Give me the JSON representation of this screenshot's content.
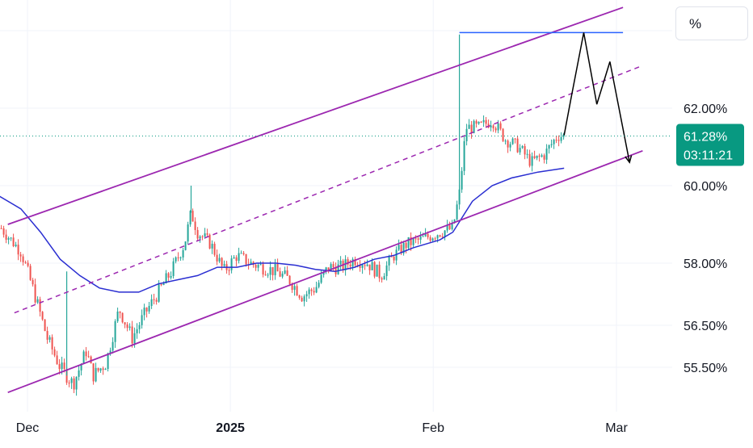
{
  "chart_data": {
    "type": "candlestick",
    "unit_button": "%",
    "y_ticks": [
      "62.00%",
      "60.00%",
      "58.00%",
      "56.50%",
      "55.50%"
    ],
    "x_ticks": [
      "Dec",
      "2025",
      "Feb",
      "Mar"
    ],
    "last_price": {
      "label": "61.28%",
      "countdown": "03:11:21",
      "value": 61.28
    },
    "colors": {
      "up": "#26a69a",
      "down": "#ef5350",
      "moving_average": "#2a2ed1",
      "channel": "#9c27b0",
      "horizontal_line": "#2962ff",
      "projection": "#000000",
      "price_line": "#089981",
      "grid": "#f0f3fa"
    },
    "grid": true,
    "series": [
      {
        "type": "candlestick",
        "close_path": [
          [
            "2024-11-27",
            58.9
          ],
          [
            "2024-11-30",
            58.3
          ],
          [
            "2024-12-02",
            57.3
          ],
          [
            "2024-12-04",
            56.2
          ],
          [
            "2024-12-06",
            55.5
          ],
          [
            "2024-12-08",
            55.1
          ],
          [
            "2024-12-10",
            55.9
          ],
          [
            "2024-12-11",
            55.3
          ],
          [
            "2024-12-13",
            55.6
          ],
          [
            "2024-12-15",
            56.9
          ],
          [
            "2024-12-17",
            56.2
          ],
          [
            "2024-12-19",
            56.8
          ],
          [
            "2024-12-21",
            57.3
          ],
          [
            "2024-12-23",
            57.8
          ],
          [
            "2024-12-25",
            58.5
          ],
          [
            "2024-12-26",
            59.3
          ],
          [
            "2024-12-27",
            58.8
          ],
          [
            "2024-12-29",
            58.5
          ],
          [
            "2024-12-31",
            57.8
          ],
          [
            "2025-01-02",
            58.2
          ],
          [
            "2025-01-04",
            58.0
          ],
          [
            "2025-01-06",
            57.9
          ],
          [
            "2025-01-08",
            57.8
          ],
          [
            "2025-01-10",
            57.6
          ],
          [
            "2025-01-12",
            57.2
          ],
          [
            "2025-01-14",
            57.4
          ],
          [
            "2025-01-16",
            57.9
          ],
          [
            "2025-01-18",
            57.9
          ],
          [
            "2025-01-20",
            58.1
          ],
          [
            "2025-01-22",
            58.0
          ],
          [
            "2025-01-24",
            57.7
          ],
          [
            "2025-01-26",
            58.2
          ],
          [
            "2025-01-28",
            58.5
          ],
          [
            "2025-01-30",
            58.6
          ],
          [
            "2025-02-02",
            58.8
          ],
          [
            "2025-02-04",
            58.9
          ],
          [
            "2025-02-05",
            59.8
          ],
          [
            "2025-02-06",
            61.5
          ],
          [
            "2025-02-08",
            61.5
          ],
          [
            "2025-02-10",
            61.7
          ],
          [
            "2025-02-12",
            61.2
          ],
          [
            "2025-02-14",
            61.0
          ],
          [
            "2025-02-16",
            60.6
          ],
          [
            "2025-02-18",
            60.8
          ],
          [
            "2025-02-20",
            61.3
          ],
          [
            "2025-02-21",
            61.28
          ]
        ],
        "spikes": [
          {
            "date": "2025-02-05",
            "high": 63.9
          },
          {
            "date": "2024-12-26",
            "high": 60.0
          },
          {
            "date": "2024-12-07",
            "high": 57.8
          }
        ]
      },
      {
        "type": "line",
        "role": "moving_average",
        "points": [
          [
            "2024-11-26",
            59.8
          ],
          [
            "2024-11-30",
            59.4
          ],
          [
            "2024-12-03",
            58.8
          ],
          [
            "2024-12-06",
            58.1
          ],
          [
            "2024-12-09",
            57.7
          ],
          [
            "2024-12-12",
            57.4
          ],
          [
            "2024-12-15",
            57.3
          ],
          [
            "2024-12-18",
            57.3
          ],
          [
            "2024-12-21",
            57.5
          ],
          [
            "2024-12-24",
            57.6
          ],
          [
            "2024-12-27",
            57.7
          ],
          [
            "2024-12-30",
            57.9
          ],
          [
            "2025-01-02",
            57.9
          ],
          [
            "2025-01-05",
            58.0
          ],
          [
            "2025-01-08",
            58.0
          ],
          [
            "2025-01-11",
            57.95
          ],
          [
            "2025-01-14",
            57.85
          ],
          [
            "2025-01-17",
            57.8
          ],
          [
            "2025-01-20",
            57.9
          ],
          [
            "2025-01-23",
            58.1
          ],
          [
            "2025-01-26",
            58.2
          ],
          [
            "2025-01-29",
            58.4
          ],
          [
            "2025-02-02",
            58.6
          ],
          [
            "2025-02-04",
            58.8
          ],
          [
            "2025-02-07",
            59.6
          ],
          [
            "2025-02-10",
            60.0
          ],
          [
            "2025-02-13",
            60.2
          ],
          [
            "2025-02-17",
            60.35
          ],
          [
            "2025-02-21",
            60.45
          ]
        ]
      }
    ],
    "drawings": {
      "channel_upper": [
        [
          "2024-11-28",
          59.0
        ],
        [
          "2025-03-02",
          64.6
        ]
      ],
      "channel_middle": [
        [
          "2024-11-29",
          56.8
        ],
        [
          "2025-03-05",
          63.1
        ]
      ],
      "channel_lower": [
        [
          "2024-11-28",
          54.9
        ],
        [
          "2025-03-05",
          60.9
        ]
      ],
      "horizontal_line": [
        [
          "2025-02-05",
          63.95
        ],
        [
          "2025-03-02",
          63.95
        ]
      ],
      "projection_path": [
        [
          "2025-02-21",
          61.3
        ],
        [
          "2025-02-22",
          62.2
        ],
        [
          "2025-02-24",
          63.95
        ],
        [
          "2025-02-26",
          62.1
        ],
        [
          "2025-02-28",
          63.2
        ],
        [
          "2025-03-03",
          60.6
        ]
      ]
    }
  }
}
